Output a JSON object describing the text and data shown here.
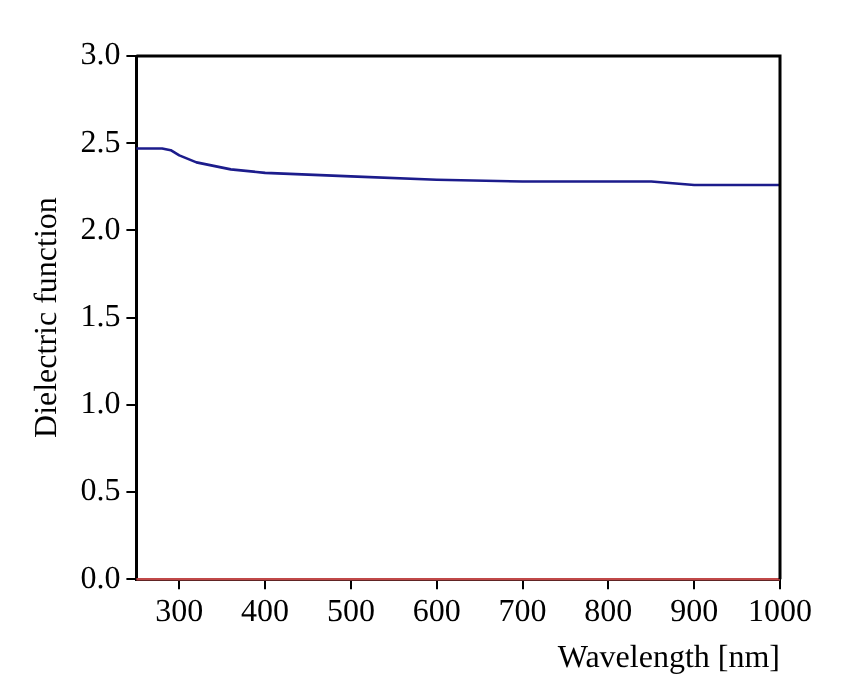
{
  "chart_data": {
    "type": "line",
    "xlabel": "Wavelength [nm]",
    "ylabel": "Dielectric function",
    "xlim": [
      250,
      1000
    ],
    "xticks": [
      300,
      400,
      500,
      600,
      700,
      800,
      900,
      1000
    ],
    "ylim": [
      0,
      3
    ],
    "yticks": [
      {
        "value": 0,
        "label": "0.0"
      },
      {
        "value": 0.5,
        "label": "0.5"
      },
      {
        "value": 1,
        "label": "1.0"
      },
      {
        "value": 1.5,
        "label": "1.5"
      },
      {
        "value": 2,
        "label": "2.0"
      },
      {
        "value": 2.5,
        "label": "2.5"
      },
      {
        "value": 3,
        "label": "3.0"
      }
    ],
    "grid": false,
    "marker": "none",
    "line_style": "solid",
    "series": [
      {
        "color": "#1c1c8c",
        "x": [
          250,
          280,
          290,
          300,
          320,
          340,
          360,
          400,
          450,
          500,
          600,
          700,
          800,
          850,
          900,
          1000
        ],
        "values": [
          2.47,
          2.47,
          2.46,
          2.43,
          2.39,
          2.37,
          2.35,
          2.33,
          2.32,
          2.31,
          2.29,
          2.28,
          2.28,
          2.28,
          2.26,
          2.26
        ]
      },
      {
        "color": "#c04848",
        "x": [
          250,
          1000
        ],
        "values": [
          0,
          0
        ]
      }
    ]
  }
}
